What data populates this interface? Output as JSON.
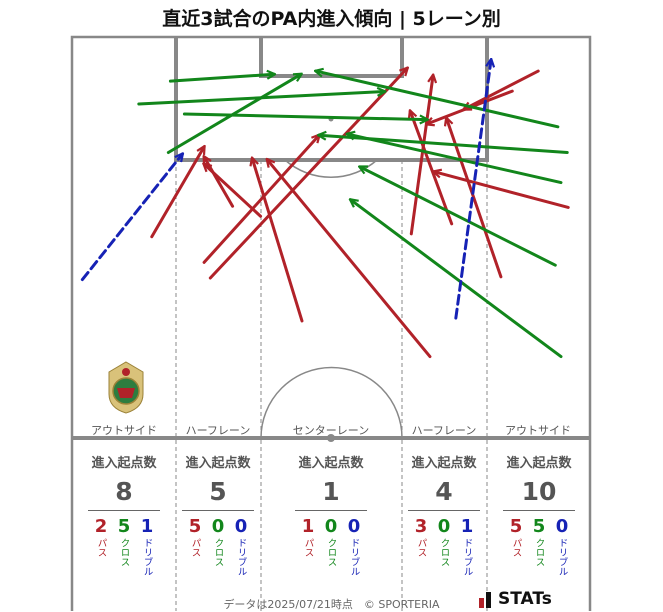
{
  "title": "直近3試合のPA内進入傾向 | 5レーン別",
  "lanes": [
    {
      "label": "アウトサイド",
      "stats_header": "進入起点数",
      "total": "8",
      "pass": "2",
      "cross": "5",
      "dribble": "1"
    },
    {
      "label": "ハーフレーン",
      "stats_header": "進入起点数",
      "total": "5",
      "pass": "5",
      "cross": "0",
      "dribble": "0"
    },
    {
      "label": "センターレーン",
      "stats_header": "進入起点数",
      "total": "1",
      "pass": "1",
      "cross": "0",
      "dribble": "0"
    },
    {
      "label": "ハーフレーン",
      "stats_header": "進入起点数",
      "total": "4",
      "pass": "3",
      "cross": "0",
      "dribble": "1"
    },
    {
      "label": "アウトサイド",
      "stats_header": "進入起点数",
      "total": "10",
      "pass": "5",
      "cross": "5",
      "dribble": "0"
    }
  ],
  "type_labels": {
    "pass": "パス",
    "cross": "クロス",
    "dribble": "ドリブル"
  },
  "colors": {
    "pass": "#b12229",
    "cross": "#12861b",
    "dribble": "#1622b5",
    "pitch_line": "#888888"
  },
  "footer": "データは2025/07/21時点　© SPORTERIA",
  "brand": "STATs",
  "chart_data": {
    "type": "scatter",
    "title": "直近3試合のPA内進入傾向 | 5レーン別",
    "note": "arrows from entry origin to end point; x = 0 (left touchline) .. 100 (right touchline); y = 0 (goal line, top) .. 100 (halfway line, bottom)",
    "arrows": [
      {
        "type": "pass",
        "x1": 15.4,
        "y1": 49.8,
        "x2": 25.5,
        "y2": 27.4
      },
      {
        "type": "pass",
        "x1": 25.5,
        "y1": 56.2,
        "x2": 47.7,
        "y2": 24.5
      },
      {
        "type": "pass",
        "x1": 31.0,
        "y1": 42.2,
        "x2": 25.5,
        "y2": 29.9
      },
      {
        "type": "pass",
        "x1": 36.4,
        "y1": 44.7,
        "x2": 25.5,
        "y2": 31.7
      },
      {
        "type": "pass",
        "x1": 44.4,
        "y1": 70.8,
        "x2": 34.8,
        "y2": 30.3
      },
      {
        "type": "pass",
        "x1": 69.1,
        "y1": 79.7,
        "x2": 37.7,
        "y2": 30.6
      },
      {
        "type": "pass",
        "x1": 26.7,
        "y1": 60.1,
        "x2": 64.7,
        "y2": 7.8
      },
      {
        "type": "pass",
        "x1": 65.5,
        "y1": 49.1,
        "x2": 69.7,
        "y2": 9.6
      },
      {
        "type": "pass",
        "x1": 73.3,
        "y1": 46.6,
        "x2": 65.3,
        "y2": 18.5
      },
      {
        "type": "pass",
        "x1": 82.8,
        "y1": 59.8,
        "x2": 72.3,
        "y2": 20.3
      },
      {
        "type": "pass",
        "x1": 95.8,
        "y1": 42.5,
        "x2": 69.9,
        "y2": 33.6
      },
      {
        "type": "pass",
        "x1": 85.0,
        "y1": 13.5,
        "x2": 68.5,
        "y2": 21.7
      },
      {
        "type": "pass",
        "x1": 90.0,
        "y1": 8.5,
        "x2": 75.7,
        "y2": 18.0
      },
      {
        "type": "cross",
        "x1": 12.9,
        "y1": 16.7,
        "x2": 60.3,
        "y2": 13.6
      },
      {
        "type": "cross",
        "x1": 21.7,
        "y1": 19.2,
        "x2": 68.5,
        "y2": 20.6
      },
      {
        "type": "cross",
        "x1": 18.6,
        "y1": 28.8,
        "x2": 44.2,
        "y2": 9.3
      },
      {
        "type": "cross",
        "x1": 19.0,
        "y1": 11.0,
        "x2": 39.0,
        "y2": 9.3
      },
      {
        "type": "cross",
        "x1": 93.8,
        "y1": 22.4,
        "x2": 47.1,
        "y2": 8.5
      },
      {
        "type": "cross",
        "x1": 94.4,
        "y1": 36.3,
        "x2": 53.2,
        "y2": 24.2
      },
      {
        "type": "cross",
        "x1": 93.3,
        "y1": 56.9,
        "x2": 55.6,
        "y2": 32.4
      },
      {
        "type": "cross",
        "x1": 94.4,
        "y1": 79.7,
        "x2": 53.8,
        "y2": 40.6
      },
      {
        "type": "cross",
        "x1": 95.6,
        "y1": 28.8,
        "x2": 47.7,
        "y2": 24.5
      },
      {
        "type": "dribble",
        "x1": 2.0,
        "y1": 60.5,
        "x2": 21.3,
        "y2": 29.2
      },
      {
        "type": "dribble",
        "x1": 74.1,
        "y1": 70.1,
        "x2": 80.9,
        "y2": 5.7
      }
    ]
  }
}
